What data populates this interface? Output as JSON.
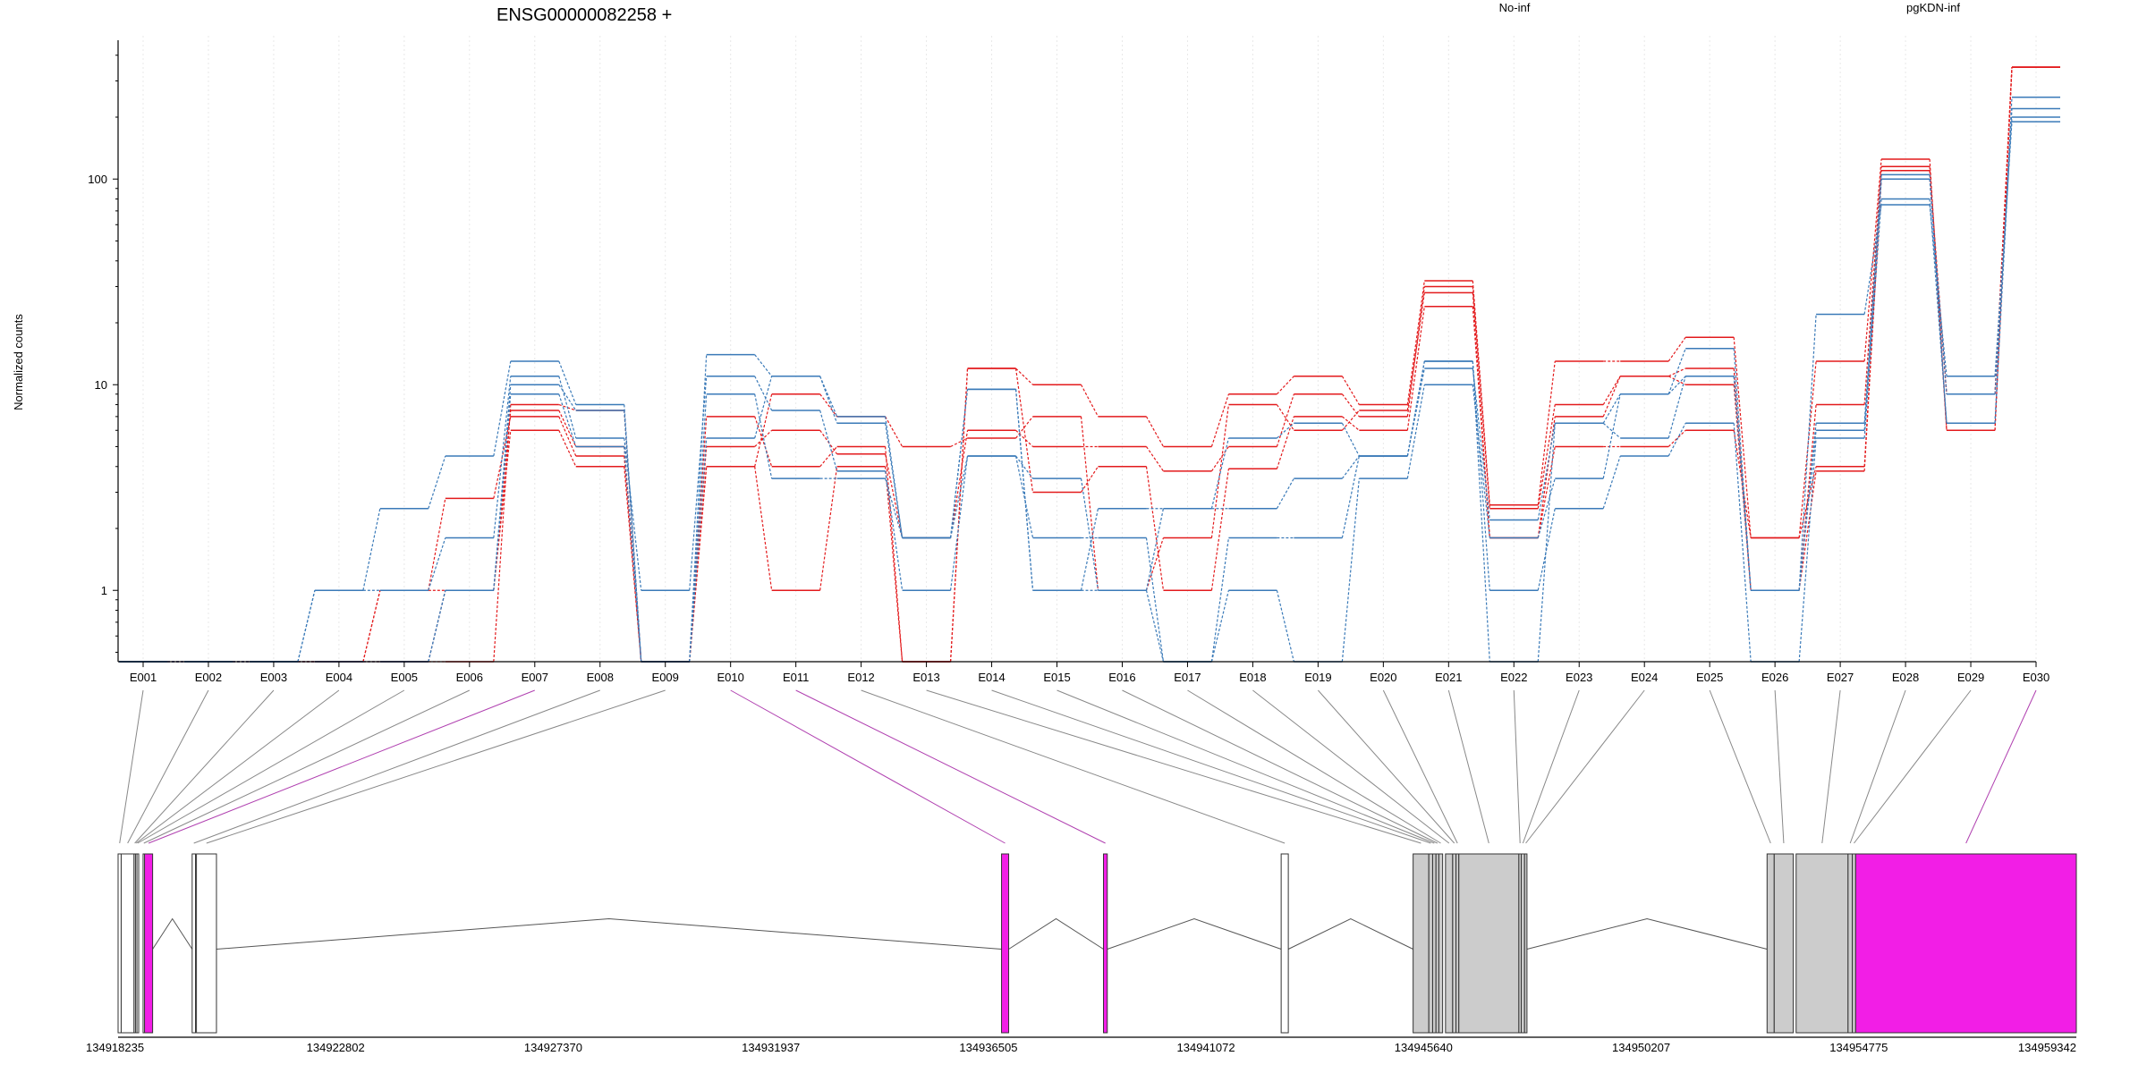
{
  "chart_data": {
    "type": "line",
    "title": "ENSG00000082258 +",
    "ylabel": "Normalized counts",
    "yscale": "log",
    "ylim": [
      0.45,
      450
    ],
    "yticks": [
      1,
      10,
      100
    ],
    "ytick_labels": [
      "1",
      "10",
      "100"
    ],
    "grid": "vertical-dotted",
    "legend_placement": "top",
    "categories": [
      "E001",
      "E002",
      "E003",
      "E004",
      "E005",
      "E006",
      "E007",
      "E008",
      "E009",
      "E010",
      "E011",
      "E012",
      "E013",
      "E014",
      "E015",
      "E016",
      "E017",
      "E018",
      "E019",
      "E020",
      "E021",
      "E022",
      "E023",
      "E024",
      "E025",
      "E026",
      "E027",
      "E028",
      "E029",
      "E030"
    ],
    "groups": [
      {
        "label": "No-inf",
        "color": "#e31a1c"
      },
      {
        "label": "pgKDN-inf",
        "color": "#3a7ab8"
      }
    ],
    "series": [
      {
        "group": 0,
        "values": [
          0.45,
          0.45,
          0.45,
          0.45,
          0.45,
          1.0,
          6.0,
          4.0,
          0.45,
          4.0,
          1.0,
          4.0,
          0.45,
          12,
          10,
          7,
          5,
          9,
          11,
          8,
          32,
          2.6,
          13,
          13,
          17,
          1.8,
          13,
          125,
          6,
          350
        ]
      },
      {
        "group": 0,
        "values": [
          0.45,
          0.45,
          0.45,
          0.45,
          1.0,
          2.8,
          7.0,
          4.5,
          0.45,
          5.0,
          6.0,
          4.6,
          1.8,
          6.0,
          5.0,
          5.0,
          3.8,
          5.0,
          9.0,
          7.0,
          30,
          2.5,
          8.0,
          11,
          12,
          1.0,
          8.0,
          115,
          6.0,
          350
        ]
      },
      {
        "group": 0,
        "values": [
          0.45,
          0.45,
          0.45,
          0.45,
          1.0,
          1.0,
          7.5,
          5.0,
          0.45,
          7.0,
          4.0,
          5.0,
          0.45,
          12,
          3.0,
          4.0,
          1.0,
          3.9,
          7.0,
          6.0,
          24,
          1.8,
          5.0,
          5.0,
          6.0,
          1.8,
          4.0,
          110,
          9.0,
          350
        ]
      },
      {
        "group": 0,
        "values": [
          0.45,
          0.45,
          0.45,
          0.45,
          0.45,
          0.45,
          8.0,
          7.5,
          0.45,
          4.0,
          9.0,
          7.0,
          5.0,
          5.5,
          7.0,
          1.0,
          1.8,
          8.0,
          6.0,
          7.5,
          28,
          1.8,
          7.0,
          11,
          10,
          1.0,
          3.8,
          100,
          9.0,
          350
        ]
      },
      {
        "group": 1,
        "values": [
          0.45,
          0.45,
          0.45,
          1.0,
          2.5,
          4.5,
          13,
          8.0,
          0.45,
          14,
          11,
          7.0,
          1.8,
          9.5,
          1.0,
          1.0,
          0.45,
          1.0,
          0.45,
          3.5,
          10,
          1.8,
          3.5,
          9.0,
          15,
          1.0,
          22,
          75,
          11,
          190
        ]
      },
      {
        "group": 1,
        "values": [
          0.45,
          0.45,
          0.45,
          1.0,
          1.0,
          1.8,
          11,
          5.5,
          1.0,
          11,
          7.5,
          3.8,
          1.0,
          4.5,
          3.5,
          1.0,
          2.5,
          5.5,
          6.5,
          4.5,
          13,
          1.0,
          2.5,
          4.5,
          6.5,
          0.45,
          5.5,
          80,
          6.5,
          250
        ]
      },
      {
        "group": 1,
        "values": [
          0.45,
          0.45,
          0.45,
          0.45,
          0.45,
          1.0,
          9.0,
          5.0,
          0.45,
          9.0,
          3.5,
          3.5,
          1.8,
          4.5,
          1.8,
          1.8,
          0.45,
          1.8,
          1.8,
          4.5,
          13,
          0.45,
          6.5,
          5.5,
          11,
          1.0,
          6.5,
          105,
          6.5,
          220
        ]
      },
      {
        "group": 1,
        "values": [
          0.45,
          0.45,
          0.45,
          0.45,
          0.45,
          1.0,
          10,
          7.5,
          0.45,
          5.5,
          11,
          6.5,
          1.8,
          9.5,
          1.0,
          2.5,
          2.5,
          2.5,
          3.5,
          4.5,
          12,
          2.2,
          6.5,
          9.0,
          11,
          1.0,
          6.0,
          100,
          9.0,
          200
        ]
      }
    ]
  },
  "gene_model": {
    "coord_start": 134918235,
    "coord_end": 134959342,
    "axis_ticks": [
      134918235,
      134922802,
      134927370,
      134931937,
      134936505,
      134941072,
      134945640,
      134950207,
      134954775,
      134959342
    ],
    "axis_tick_labels": [
      "134918235",
      "134922802",
      "134927370",
      "134931937",
      "134936505",
      "134941072",
      "134945640",
      "134950207",
      "134954775",
      "134959342"
    ],
    "colors": {
      "exon_default": "#ffffff",
      "exon_gray": "#cccccc",
      "exon_highlight": "#f21ee6",
      "link_default": "#888888",
      "link_highlight": "#b040b0",
      "intron": "#555555"
    },
    "exons": [
      {
        "bin": "E001",
        "start": 134918235,
        "end": 134918300,
        "style": "white"
      },
      {
        "bin": "E002",
        "start": 134918300,
        "end": 134918570,
        "style": "white"
      },
      {
        "bin": "E003",
        "start": 134918570,
        "end": 134918600,
        "style": "white"
      },
      {
        "bin": "E004",
        "start": 134918600,
        "end": 134918630,
        "style": "white"
      },
      {
        "bin": "E005",
        "start": 134918630,
        "end": 134918660,
        "style": "white"
      },
      {
        "bin": "E006",
        "start": 134918760,
        "end": 134918790,
        "style": "white"
      },
      {
        "bin": "E007",
        "start": 134918790,
        "end": 134918960,
        "style": "magenta"
      },
      {
        "bin": "E008",
        "start": 134919790,
        "end": 134919860,
        "style": "white"
      },
      {
        "bin": "E009",
        "start": 134919880,
        "end": 134920300,
        "style": "white"
      },
      {
        "bin": "E010",
        "start": 134936780,
        "end": 134936930,
        "style": "magenta"
      },
      {
        "bin": "E011",
        "start": 134938920,
        "end": 134939000,
        "style": "magenta"
      },
      {
        "bin": "E012",
        "start": 134942650,
        "end": 134942800,
        "style": "white"
      },
      {
        "bin": "E013",
        "start": 134945420,
        "end": 134945750,
        "style": "gray"
      },
      {
        "bin": "E014",
        "start": 134945750,
        "end": 134945830,
        "style": "gray"
      },
      {
        "bin": "E015",
        "start": 134945830,
        "end": 134945900,
        "style": "gray"
      },
      {
        "bin": "E016",
        "start": 134945900,
        "end": 134945960,
        "style": "gray"
      },
      {
        "bin": "E017",
        "start": 134945960,
        "end": 134946040,
        "style": "gray"
      },
      {
        "bin": "E018",
        "start": 134946100,
        "end": 134946250,
        "style": "gray"
      },
      {
        "bin": "E019",
        "start": 134946250,
        "end": 134946320,
        "style": "gray"
      },
      {
        "bin": "E020",
        "start": 134946320,
        "end": 134946380,
        "style": "gray"
      },
      {
        "bin": "E021",
        "start": 134946380,
        "end": 134947640,
        "style": "gray"
      },
      {
        "bin": "E022",
        "start": 134947640,
        "end": 134947690,
        "style": "gray"
      },
      {
        "bin": "E023",
        "start": 134947690,
        "end": 134947760,
        "style": "gray"
      },
      {
        "bin": "E024",
        "start": 134947760,
        "end": 134947810,
        "style": "gray"
      },
      {
        "bin": "E025",
        "start": 134952850,
        "end": 134953000,
        "style": "gray"
      },
      {
        "bin": "E026",
        "start": 134953000,
        "end": 134953400,
        "style": "gray"
      },
      {
        "bin": "E027",
        "start": 134953460,
        "end": 134954550,
        "style": "gray"
      },
      {
        "bin": "E028",
        "start": 134954550,
        "end": 134954640,
        "style": "gray"
      },
      {
        "bin": "E029",
        "start": 134954640,
        "end": 134954710,
        "style": "gray"
      },
      {
        "bin": "E030",
        "start": 134954710,
        "end": 134959342,
        "style": "magenta"
      }
    ],
    "introns": [
      [
        134918960,
        134919790
      ],
      [
        134920300,
        134936780
      ],
      [
        134936930,
        134938920
      ],
      [
        134939000,
        134942650
      ],
      [
        134942800,
        134945420
      ],
      [
        134947810,
        134952850
      ]
    ]
  }
}
